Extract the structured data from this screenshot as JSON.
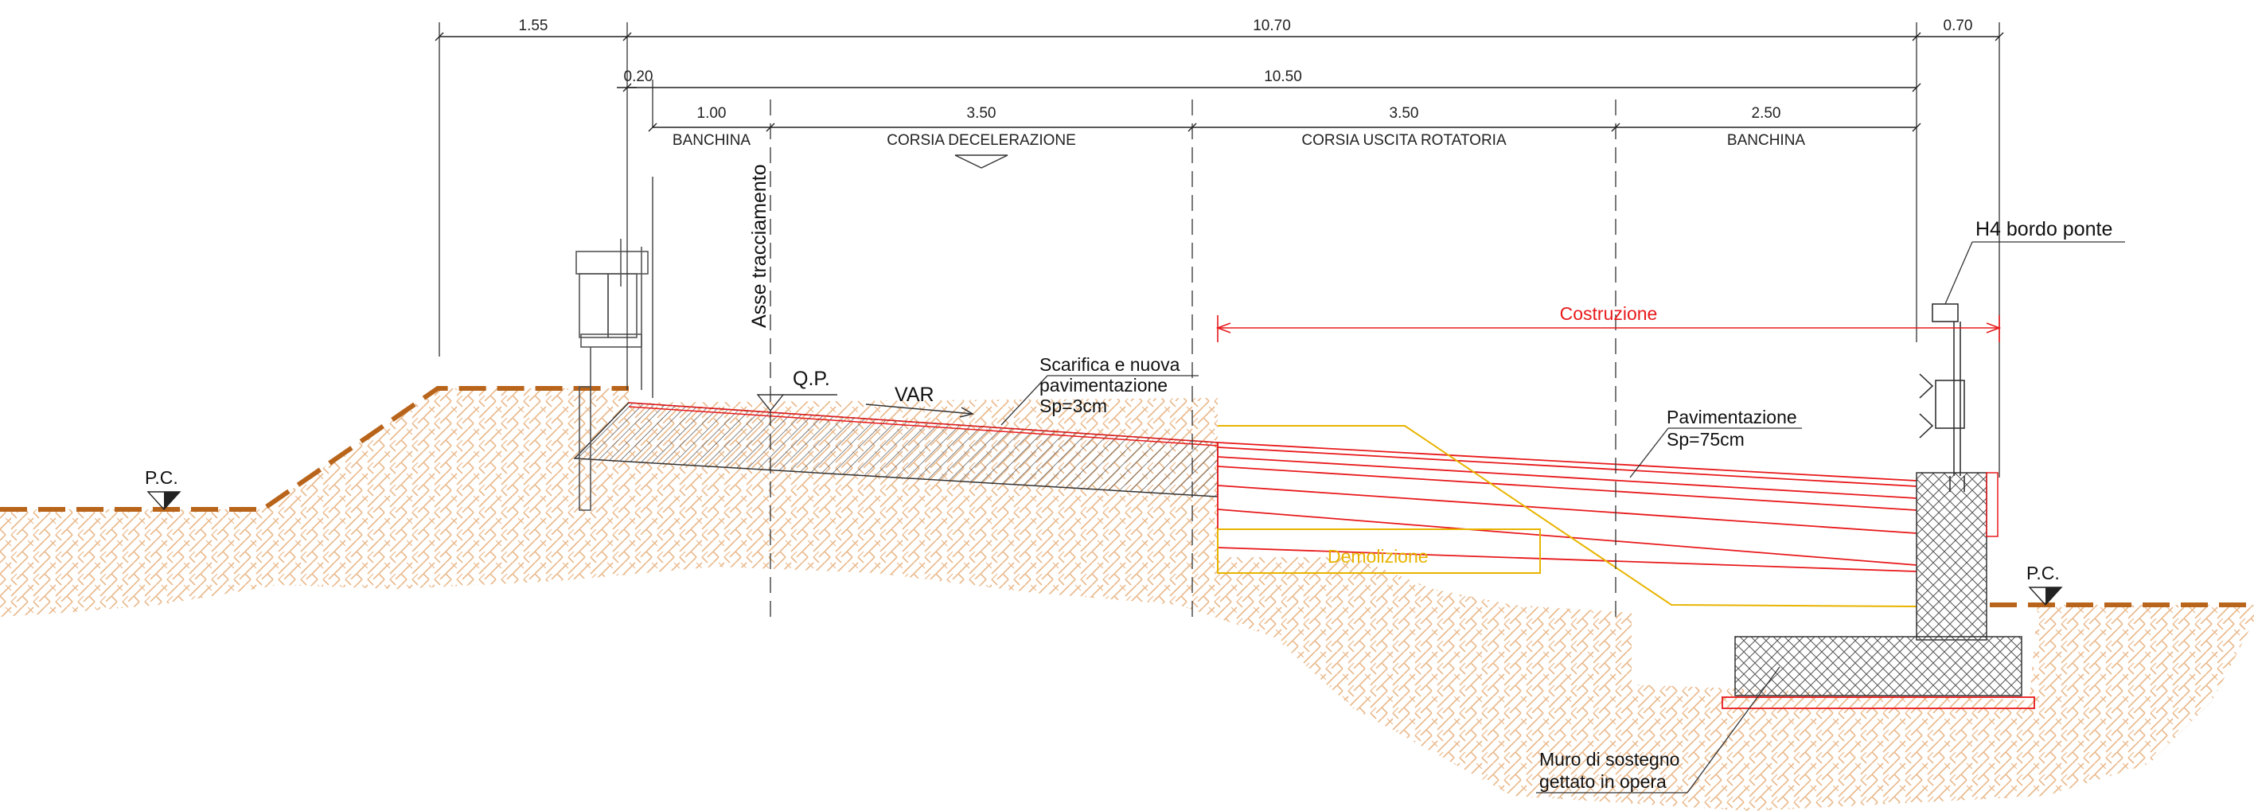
{
  "dimensions": {
    "top_left": "1.55",
    "top_total": "10.70",
    "top_right": "0.70",
    "second_left": "0.20",
    "second_total": "10.50",
    "seg_banchina_left": "1.00",
    "seg_corsia_dec": "3.50",
    "seg_corsia_uscita": "3.50",
    "seg_banchina_right": "2.50"
  },
  "zones": {
    "banchina_left": "BANCHINA",
    "corsia_dec": "CORSIA DECELERAZIONE",
    "corsia_uscita": "CORSIA USCITA ROTATORIA",
    "banchina_right": "BANCHINA"
  },
  "labels": {
    "axis": "Asse tracciamento",
    "qp": "Q.P.",
    "var": "VAR",
    "scarifica_1": "Scarifica e nuova",
    "scarifica_2": "pavimentazione",
    "scarifica_3": "Sp=3cm",
    "costruzione": "Costruzione",
    "demolizione": "Demolizione",
    "pavimentazione_1": "Pavimentazione",
    "pavimentazione_2": "Sp=75cm",
    "h4": "H4 bordo ponte",
    "pc_left": "P.C.",
    "pc_right": "P.C.",
    "muro_1": "Muro di sostegno",
    "muro_2": "gettato in opera"
  },
  "colors": {
    "construction": "#e8191b",
    "demolition": "#e8b400",
    "ground_line": "#b8641a",
    "soil_hatch": "#e9b98c",
    "line": "#222222"
  }
}
